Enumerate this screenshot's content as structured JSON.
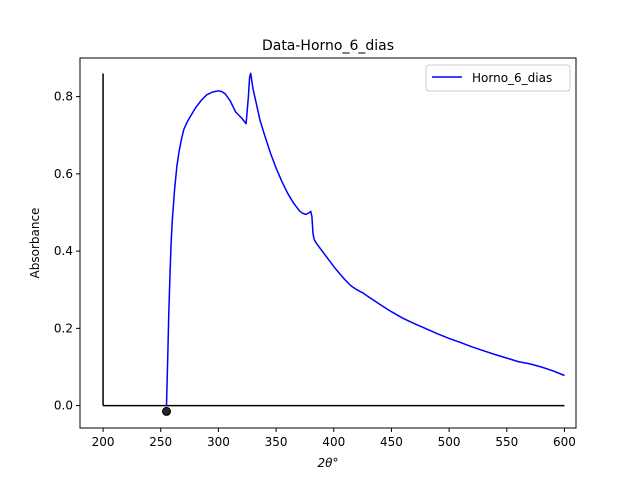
{
  "chart_data": {
    "type": "line",
    "title": "Data-Horno_6_dias",
    "xlabel": "2θ°",
    "ylabel": "Absorbance",
    "xlim": [
      180,
      610
    ],
    "ylim": [
      -0.058,
      0.9
    ],
    "xticks": [
      200,
      250,
      300,
      350,
      400,
      450,
      500,
      550,
      600
    ],
    "xtick_labels": [
      "200",
      "250",
      "300",
      "350",
      "400",
      "450",
      "500",
      "550",
      "600"
    ],
    "yticks": [
      0.0,
      0.2,
      0.4,
      0.6,
      0.8
    ],
    "ytick_labels": [
      "0.0",
      "0.2",
      "0.4",
      "0.6",
      "0.8"
    ],
    "grid": false,
    "legend_position": "upper-right",
    "series": [
      {
        "name": "Horno_6_dias",
        "color": "#0000ff",
        "x": [
          255,
          256,
          257,
          258,
          259,
          260,
          262,
          264,
          266,
          268,
          270,
          273,
          276,
          280,
          285,
          290,
          295,
          300,
          303,
          306,
          310,
          315,
          320,
          324,
          326,
          327,
          328,
          330,
          333,
          336,
          340,
          345,
          350,
          355,
          360,
          365,
          370,
          373,
          376,
          379,
          380,
          381,
          382,
          383,
          384,
          385,
          390,
          395,
          400,
          405,
          410,
          415,
          420,
          425,
          430,
          440,
          450,
          460,
          470,
          480,
          490,
          500,
          510,
          520,
          530,
          540,
          550,
          560,
          570,
          580,
          590,
          600
        ],
        "y": [
          0.0,
          0.12,
          0.24,
          0.34,
          0.42,
          0.48,
          0.56,
          0.62,
          0.66,
          0.69,
          0.715,
          0.735,
          0.75,
          0.77,
          0.79,
          0.805,
          0.812,
          0.815,
          0.813,
          0.807,
          0.79,
          0.76,
          0.745,
          0.73,
          0.8,
          0.85,
          0.86,
          0.82,
          0.78,
          0.74,
          0.7,
          0.655,
          0.615,
          0.58,
          0.55,
          0.525,
          0.505,
          0.498,
          0.495,
          0.5,
          0.503,
          0.49,
          0.445,
          0.43,
          0.425,
          0.42,
          0.4,
          0.38,
          0.36,
          0.342,
          0.325,
          0.31,
          0.3,
          0.292,
          0.282,
          0.262,
          0.243,
          0.226,
          0.212,
          0.199,
          0.186,
          0.174,
          0.163,
          0.152,
          0.142,
          0.132,
          0.123,
          0.114,
          0.108,
          0.1,
          0.09,
          0.078
        ]
      }
    ],
    "axis_lines": [
      {
        "color": "#000000",
        "x": [
          200,
          200
        ],
        "y": [
          0.0,
          0.86
        ]
      },
      {
        "color": "#000000",
        "x": [
          200,
          600
        ],
        "y": [
          0.0,
          0.0
        ]
      }
    ],
    "marker": {
      "color": "#000000",
      "x": 255,
      "y": -0.015
    }
  }
}
